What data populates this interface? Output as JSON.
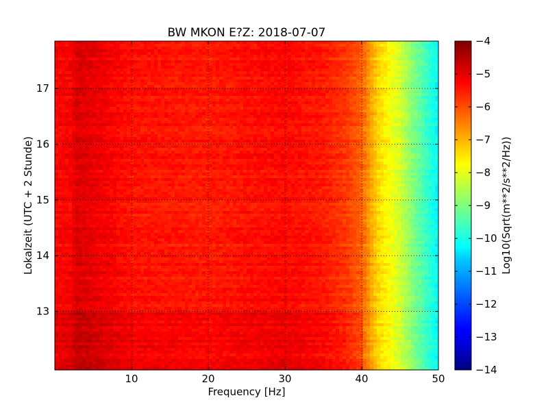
{
  "chart_data": {
    "type": "heatmap",
    "title": "BW MKON E?Z: 2018-07-07",
    "xlabel": "Frequency [Hz]",
    "ylabel": "Lokalzeit (UTC + 2 Stunde)",
    "xlim": [
      0,
      50
    ],
    "ylim": [
      17.85,
      11.95
    ],
    "x_ticks": [
      10,
      20,
      30,
      40,
      50
    ],
    "x_tick_labels": [
      "10",
      "20",
      "30",
      "40",
      "50"
    ],
    "y_ticks": [
      13,
      14,
      15,
      16,
      17
    ],
    "y_tick_labels": [
      "13",
      "14",
      "15",
      "16",
      "17"
    ],
    "grid": true,
    "grid_style": "dotted",
    "colormap": "jet",
    "colorbar": {
      "label": "Log10(Sqrt(m**2/s**2/Hz))",
      "range": [
        -14,
        -4
      ],
      "ticks": [
        -4,
        -5,
        -6,
        -7,
        -8,
        -9,
        -10,
        -11,
        -12,
        -13,
        -14
      ],
      "tick_labels": [
        "−4",
        "−5",
        "−6",
        "−7",
        "−8",
        "−9",
        "−10",
        "−11",
        "−12",
        "−13",
        "−14"
      ]
    },
    "value_profile": {
      "frequency_hz": [
        0,
        2,
        3,
        10,
        20,
        30,
        35,
        38,
        40,
        42,
        45,
        47,
        50
      ],
      "log10_value": [
        -5.3,
        -5.2,
        -4.9,
        -5.4,
        -5.5,
        -5.3,
        -5.5,
        -5.8,
        -6.2,
        -7.3,
        -8.2,
        -9.1,
        -10.3
      ]
    },
    "bands": [
      {
        "time": 13.7,
        "delta": 0.4,
        "fmax": 40
      },
      {
        "time": 14.82,
        "delta": 0.35,
        "fmax": 50
      },
      {
        "time": 14.92,
        "delta": 0.3,
        "fmax": 50
      },
      {
        "time": 15.15,
        "delta": 0.4,
        "fmax": 50
      },
      {
        "time": 15.28,
        "delta": 0.9,
        "fmax": 50
      },
      {
        "time": 15.4,
        "delta": 1.0,
        "fmax": 50
      },
      {
        "time": 15.55,
        "delta": 0.4,
        "fmax": 50
      },
      {
        "time": 15.72,
        "delta": 0.35,
        "fmax": 50
      },
      {
        "time": 16.15,
        "delta": 0.35,
        "fmax": 50
      },
      {
        "time": 16.62,
        "delta": 0.6,
        "fmin": 25,
        "fmax": 43
      }
    ],
    "colors": {
      "jet": [
        "#00007f",
        "#0000ff",
        "#007fff",
        "#00ffff",
        "#7fff7f",
        "#ffff00",
        "#ff7f00",
        "#ff0000",
        "#7f0000"
      ]
    }
  }
}
